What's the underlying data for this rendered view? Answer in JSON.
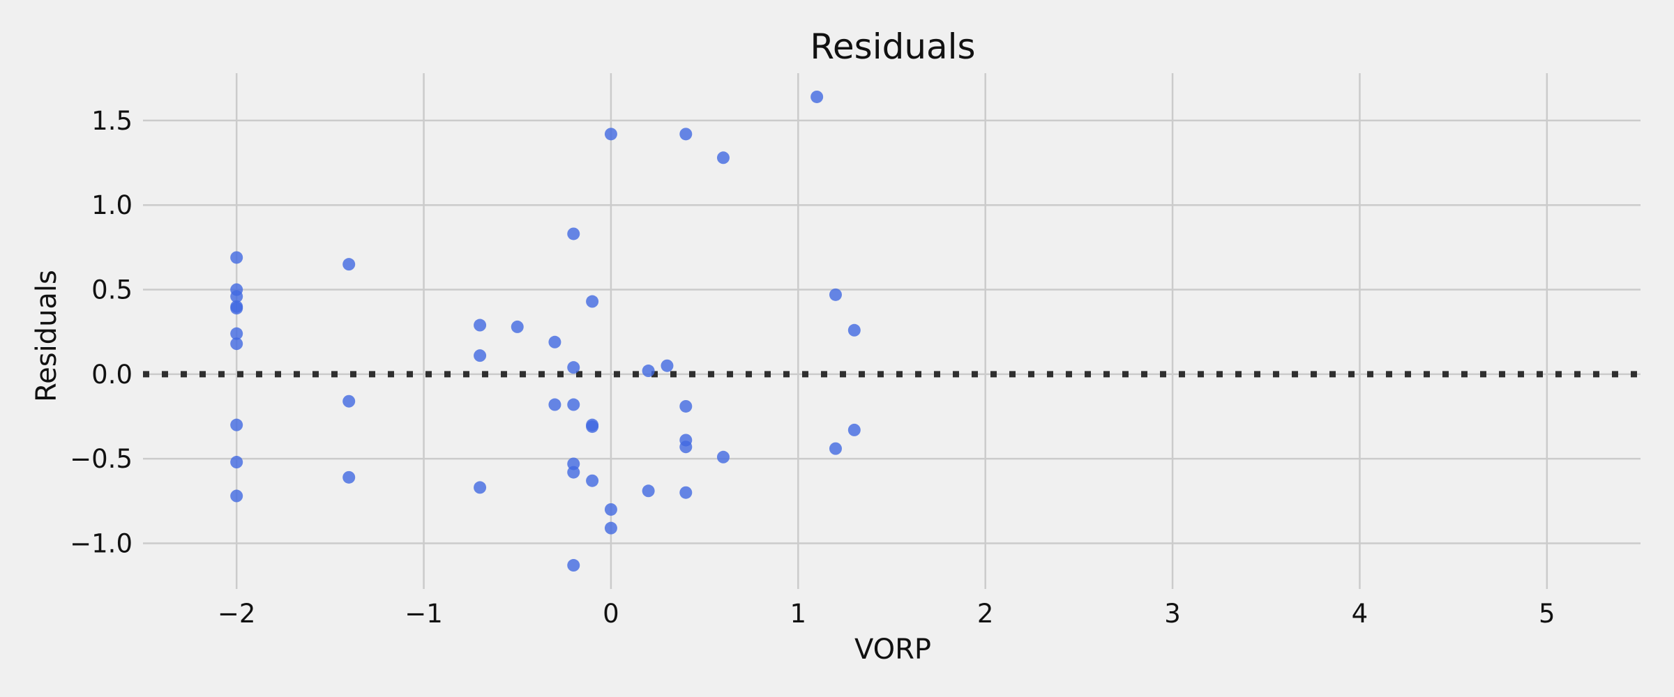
{
  "chart_data": {
    "type": "scatter",
    "title": "Residuals",
    "xlabel": "VORP",
    "ylabel": "Residuals",
    "xlim": [
      -2.5,
      5.5
    ],
    "ylim": [
      -1.27,
      1.78
    ],
    "xticks": [
      -2,
      -1,
      0,
      1,
      2,
      3,
      4,
      5
    ],
    "xtick_labels": [
      "−2",
      "−1",
      "0",
      "1",
      "2",
      "3",
      "4",
      "5"
    ],
    "yticks": [
      -1.0,
      -0.5,
      0.0,
      0.5,
      1.0,
      1.5
    ],
    "ytick_labels": [
      "−1.0",
      "−0.5",
      "0.0",
      "0.5",
      "1.0",
      "1.5"
    ],
    "grid": true,
    "reference_line": {
      "y": 0.0,
      "style": "dotted",
      "color": "#2f2f2f"
    },
    "point_color": "#4169e1",
    "background": "#f0f0f0",
    "points": [
      {
        "x": -2.0,
        "y": 0.69
      },
      {
        "x": -2.0,
        "y": 0.5
      },
      {
        "x": -2.0,
        "y": 0.46
      },
      {
        "x": -2.0,
        "y": 0.4
      },
      {
        "x": -2.0,
        "y": 0.39
      },
      {
        "x": -2.0,
        "y": 0.24
      },
      {
        "x": -2.0,
        "y": 0.18
      },
      {
        "x": -2.0,
        "y": -0.3
      },
      {
        "x": -2.0,
        "y": -0.52
      },
      {
        "x": -2.0,
        "y": -0.72
      },
      {
        "x": -1.4,
        "y": 0.65
      },
      {
        "x": -1.4,
        "y": -0.16
      },
      {
        "x": -1.4,
        "y": -0.61
      },
      {
        "x": -0.7,
        "y": 0.29
      },
      {
        "x": -0.7,
        "y": 0.11
      },
      {
        "x": -0.7,
        "y": -0.67
      },
      {
        "x": -0.5,
        "y": 0.28
      },
      {
        "x": -0.3,
        "y": 0.19
      },
      {
        "x": -0.3,
        "y": -0.18
      },
      {
        "x": -0.2,
        "y": 0.83
      },
      {
        "x": -0.2,
        "y": 0.04
      },
      {
        "x": -0.2,
        "y": -0.18
      },
      {
        "x": -0.2,
        "y": -0.53
      },
      {
        "x": -0.2,
        "y": -0.58
      },
      {
        "x": -0.2,
        "y": -1.13
      },
      {
        "x": -0.1,
        "y": 0.43
      },
      {
        "x": -0.1,
        "y": -0.3
      },
      {
        "x": -0.1,
        "y": -0.31
      },
      {
        "x": -0.1,
        "y": -0.63
      },
      {
        "x": 0.0,
        "y": 1.42
      },
      {
        "x": 0.0,
        "y": -0.8
      },
      {
        "x": 0.0,
        "y": -0.91
      },
      {
        "x": 0.2,
        "y": 0.02
      },
      {
        "x": 0.2,
        "y": -0.69
      },
      {
        "x": 0.3,
        "y": 0.05
      },
      {
        "x": 0.4,
        "y": 1.42
      },
      {
        "x": 0.4,
        "y": -0.19
      },
      {
        "x": 0.4,
        "y": -0.39
      },
      {
        "x": 0.4,
        "y": -0.43
      },
      {
        "x": 0.4,
        "y": -0.7
      },
      {
        "x": 0.6,
        "y": 1.28
      },
      {
        "x": 0.6,
        "y": -0.49
      },
      {
        "x": 1.1,
        "y": 1.64
      },
      {
        "x": 1.2,
        "y": 0.47
      },
      {
        "x": 1.2,
        "y": -0.44
      },
      {
        "x": 1.3,
        "y": 0.26
      },
      {
        "x": 1.3,
        "y": -0.33
      }
    ]
  }
}
